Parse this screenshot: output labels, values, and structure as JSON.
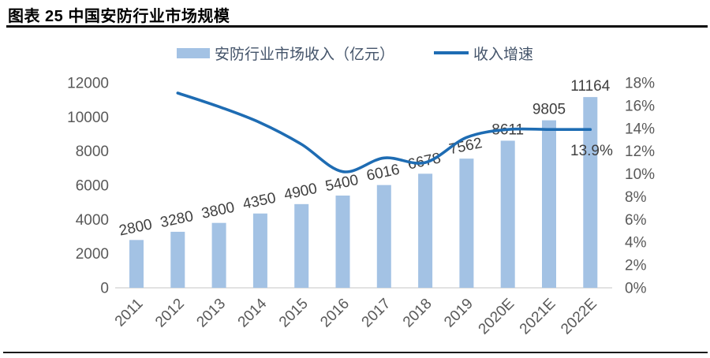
{
  "header": {
    "title": "图表 25 中国安防行业市场规模"
  },
  "legend": [
    {
      "label": "安防行业市场收入（亿元）",
      "swatch": "bar-swatch",
      "color": "#A3C2E4"
    },
    {
      "label": "收入增速",
      "swatch": "line-swatch",
      "color": "#1E6CB3"
    }
  ],
  "chart_data": {
    "type": "bar+line",
    "title": "图表 25 中国安防行业市场规模",
    "categories": [
      "2011",
      "2012",
      "2013",
      "2014",
      "2015",
      "2016",
      "2017",
      "2018",
      "2019",
      "2020E",
      "2021E",
      "2022E"
    ],
    "series": [
      {
        "name": "安防行业市场收入（亿元）",
        "type": "bar",
        "axis": "left",
        "color": "#A3C2E4",
        "values": [
          2800,
          3280,
          3800,
          4350,
          4900,
          5400,
          6016,
          6678,
          7562,
          8611,
          9805,
          11164
        ]
      },
      {
        "name": "收入增速",
        "type": "line",
        "axis": "right",
        "color": "#1E6CB3",
        "values_percent": [
          null,
          17.1,
          15.9,
          14.5,
          12.6,
          10.2,
          11.4,
          11.0,
          13.2,
          13.9,
          13.9,
          13.9
        ]
      }
    ],
    "left_axis": {
      "ticks": [
        0,
        2000,
        4000,
        6000,
        8000,
        10000,
        12000
      ],
      "range": [
        0,
        12000
      ]
    },
    "right_axis": {
      "ticks_percent": [
        0,
        2,
        4,
        6,
        8,
        10,
        12,
        14,
        16,
        18
      ],
      "range_percent": [
        0,
        18
      ]
    },
    "annotation": {
      "text": "13.9%"
    },
    "legend_position": "top",
    "grid": "off",
    "colors": {
      "bar": "#A3C2E4",
      "line": "#1E6CB3",
      "axis_text": "#595959",
      "data_label_text": "#3F3F3F",
      "baseline": "#D9D9D9"
    }
  }
}
